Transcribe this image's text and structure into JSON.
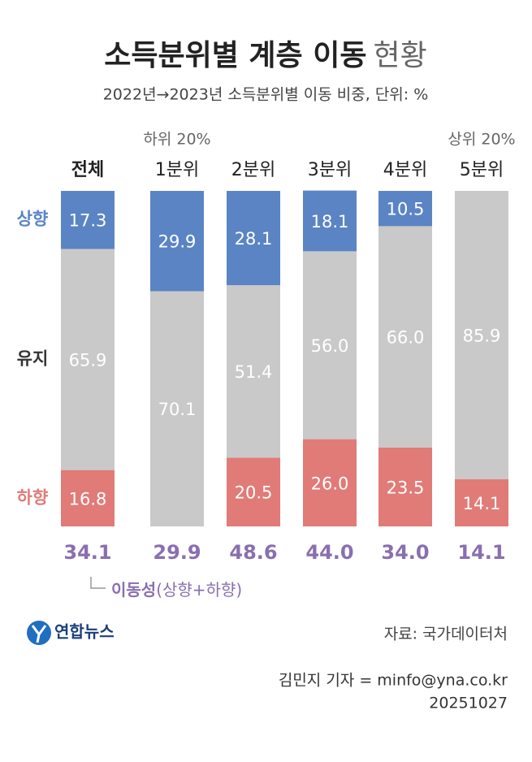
{
  "chart_data": {
    "type": "stacked-bar",
    "title": "소득분위별 계층 이동",
    "title_suffix": "현황",
    "subtitle": "2022년→2023년 소득분위별 이동 비중, 단위: %",
    "categories": [
      "전체",
      "1분위",
      "2분위",
      "3분위",
      "4분위",
      "5분위"
    ],
    "annotations": [
      {
        "category": 1,
        "text": "하위 20%"
      },
      {
        "category": 5,
        "text": "상위 20%"
      }
    ],
    "series": [
      {
        "name": "상향",
        "color": "#5b84c4",
        "values": [
          17.3,
          29.9,
          28.1,
          18.1,
          10.5,
          null
        ],
        "value_labels": [
          "17.3",
          "29.9",
          "28.1",
          "18.1",
          "10.5",
          null
        ]
      },
      {
        "name": "유지",
        "color": "#c9c9c9",
        "values": [
          65.9,
          70.1,
          51.4,
          56.0,
          66.0,
          85.9
        ],
        "value_labels": [
          "65.9",
          "70.1",
          "51.4",
          "56.0",
          "66.0",
          "85.9"
        ]
      },
      {
        "name": "하향",
        "color": "#e07b78",
        "values": [
          16.8,
          null,
          20.5,
          26.0,
          23.5,
          14.1
        ],
        "value_labels": [
          "16.8",
          null,
          "20.5",
          "26.0",
          "23.5",
          "14.1"
        ]
      }
    ],
    "mobility": {
      "label": "이동성",
      "label_note": "(상향+하향)",
      "color": "#8a6fb0",
      "values": [
        34.1,
        29.9,
        48.6,
        44.0,
        34.0,
        14.1
      ],
      "value_labels": [
        "34.1",
        "29.9",
        "48.6",
        "44.0",
        "34.0",
        "14.1"
      ]
    },
    "ylim": [
      0,
      100
    ]
  },
  "footer": {
    "logo": "연합뉴스",
    "source": "자료: 국가데이터처",
    "credit": "김민지 기자 = minfo@yna.co.kr",
    "date": "20251027"
  }
}
